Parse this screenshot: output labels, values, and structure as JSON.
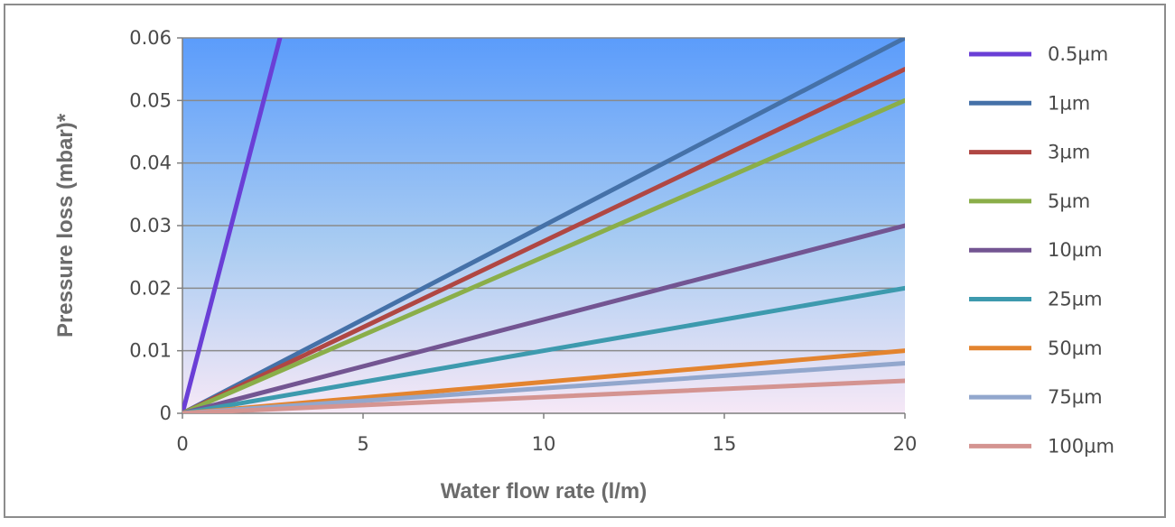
{
  "chart_data": {
    "type": "line",
    "xlabel": "Water flow rate (l/m)",
    "ylabel": "Pressure loss (mbar)*",
    "xlim": [
      0,
      20
    ],
    "ylim": [
      0,
      0.06
    ],
    "xticks": [
      0,
      5,
      10,
      15,
      20
    ],
    "xtick_labels": [
      "0",
      "5",
      "10",
      "15",
      "20"
    ],
    "yticks": [
      0,
      0.01,
      0.02,
      0.03,
      0.04,
      0.05,
      0.06
    ],
    "ytick_labels": [
      "0",
      "0.01",
      "0.02",
      "0.03",
      "0.04",
      "0.05",
      "0.06"
    ],
    "grid": true,
    "legend_position": "right",
    "plot_background": {
      "top_color": "#5b9cfb",
      "mid_color": "#a9ccf2",
      "bottom_color": "#f6e8f6"
    },
    "series": [
      {
        "name": "0.5µm",
        "color": "#6a3fd6",
        "x": [
          0,
          2.7
        ],
        "y": [
          0,
          0.06
        ]
      },
      {
        "name": "1µm",
        "color": "#4571a8",
        "x": [
          0,
          20
        ],
        "y": [
          0,
          0.06
        ]
      },
      {
        "name": "3µm",
        "color": "#b04743",
        "x": [
          0,
          20
        ],
        "y": [
          0,
          0.055
        ]
      },
      {
        "name": "5µm",
        "color": "#8aae49",
        "x": [
          0,
          20
        ],
        "y": [
          0,
          0.05
        ]
      },
      {
        "name": "10µm",
        "color": "#735592",
        "x": [
          0,
          20
        ],
        "y": [
          0,
          0.03
        ]
      },
      {
        "name": "25µm",
        "color": "#3d9aae",
        "x": [
          0,
          20
        ],
        "y": [
          0,
          0.02
        ]
      },
      {
        "name": "50µm",
        "color": "#e3842f",
        "x": [
          0,
          20
        ],
        "y": [
          0,
          0.01
        ]
      },
      {
        "name": "75µm",
        "color": "#92a7cd",
        "x": [
          0,
          20
        ],
        "y": [
          0,
          0.008
        ]
      },
      {
        "name": "100µm",
        "color": "#d49491",
        "x": [
          0,
          20
        ],
        "y": [
          0,
          0.0052
        ]
      }
    ]
  }
}
